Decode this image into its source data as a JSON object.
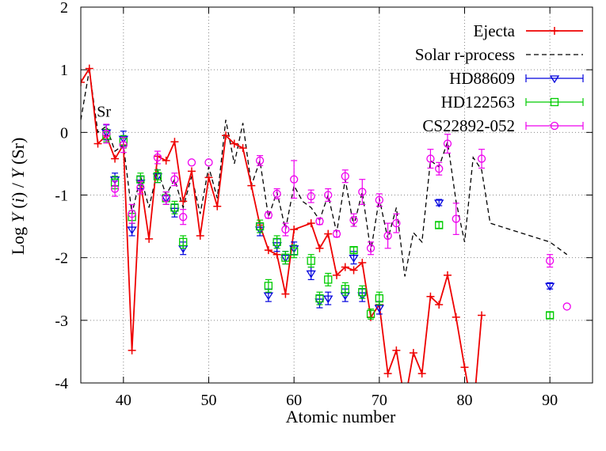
{
  "chart_data": {
    "type": "line",
    "title": "",
    "xlabel": "Atomic number",
    "ylabel_parts": [
      "Log  ",
      "Y",
      " (",
      "i",
      ") / ",
      "Y",
      " (Sr)"
    ],
    "xlim": [
      35,
      95
    ],
    "ylim": [
      -4,
      2
    ],
    "x_ticks": [
      40,
      50,
      60,
      70,
      80,
      90
    ],
    "y_ticks": [
      2,
      1,
      0,
      -1,
      -2,
      -3,
      -4
    ],
    "y_tick_labels": [
      "2",
      "1",
      "0",
      "-1",
      "-2",
      "-3",
      "-4"
    ],
    "grid": true,
    "legend_position": "top-right",
    "annotation": {
      "text": "Sr",
      "x": 38,
      "y": 0.2
    },
    "series": [
      {
        "name": "Ejecta",
        "color": "#ee0000",
        "style": "line-plus",
        "x": [
          35,
          36,
          37,
          38,
          39,
          40,
          41,
          42,
          43,
          44,
          45,
          46,
          47,
          48,
          49,
          50,
          51,
          52,
          53,
          54,
          55,
          56,
          57,
          58,
          59,
          60,
          62,
          63,
          64,
          65,
          66,
          67,
          68,
          69,
          70,
          71,
          72,
          73,
          74,
          75,
          76,
          77,
          78,
          79,
          80,
          81,
          82
        ],
        "y": [
          0.8,
          1.02,
          -0.18,
          -0.05,
          -0.42,
          -0.2,
          -3.48,
          -0.78,
          -1.7,
          -0.38,
          -0.45,
          -0.15,
          -1.1,
          -0.62,
          -1.65,
          -0.72,
          -1.18,
          -0.05,
          -0.18,
          -0.25,
          -0.85,
          -1.48,
          -1.88,
          -1.95,
          -2.58,
          -1.55,
          -1.45,
          -1.85,
          -1.62,
          -2.28,
          -2.15,
          -2.2,
          -2.08,
          -2.95,
          -2.75,
          -3.85,
          -3.48,
          -4.3,
          -3.52,
          -3.85,
          -2.62,
          -2.75,
          -2.28,
          -2.95,
          -3.75,
          -4.5,
          -2.92
        ]
      },
      {
        "name": "Solar r-process",
        "color": "#000000",
        "style": "dashed",
        "x": [
          35,
          36,
          37,
          38,
          39,
          40,
          41,
          42,
          43,
          44,
          45,
          46,
          47,
          48,
          49,
          50,
          51,
          52,
          53,
          54,
          55,
          56,
          57,
          58,
          59,
          60,
          61,
          62,
          63,
          64,
          65,
          66,
          67,
          68,
          69,
          70,
          71,
          72,
          73,
          74,
          75,
          76,
          77,
          78,
          79,
          80,
          81,
          82,
          83,
          90,
          92
        ],
        "y": [
          0.2,
          1.0,
          0.0,
          0.1,
          -0.3,
          -0.2,
          -1.3,
          -0.7,
          -1.2,
          -0.6,
          -1.0,
          -0.75,
          -1.2,
          -0.7,
          -1.3,
          -0.55,
          -1.05,
          0.2,
          -0.5,
          0.15,
          -0.85,
          -0.45,
          -1.35,
          -0.95,
          -1.55,
          -0.85,
          -1.1,
          -1.2,
          -1.4,
          -1.0,
          -1.6,
          -0.75,
          -1.5,
          -0.95,
          -1.9,
          -1.05,
          -1.7,
          -1.2,
          -2.3,
          -1.6,
          -1.75,
          -0.45,
          -0.55,
          -0.15,
          -1.1,
          -1.75,
          -0.4,
          -0.6,
          -1.45,
          -1.75,
          -1.95
        ]
      },
      {
        "name": "HD88609",
        "color": "#0000dd",
        "style": "triangle-down",
        "x": [
          38,
          39,
          40,
          41,
          42,
          44,
          45,
          46,
          47,
          56,
          57,
          58,
          59,
          60,
          62,
          63,
          64,
          66,
          67,
          68,
          70,
          77,
          90
        ],
        "y": [
          0.0,
          -0.75,
          -0.1,
          -1.55,
          -0.8,
          -0.7,
          -1.05,
          -1.25,
          -1.85,
          -1.55,
          -2.6,
          -1.8,
          -2.0,
          -1.85,
          -2.25,
          -2.7,
          -2.65,
          -2.6,
          -2.0,
          -2.6,
          -2.8,
          -1.12,
          -2.45
        ],
        "err": [
          0.12,
          0.1,
          0.12,
          0.1,
          0.1,
          0.1,
          0.1,
          0.1,
          0.1,
          0.1,
          0.1,
          0.1,
          0.1,
          0.1,
          0.1,
          0.1,
          0.1,
          0.1,
          0.1,
          0.1,
          0.1,
          0.05,
          0.05
        ]
      },
      {
        "name": "HD122563",
        "color": "#00cc00",
        "style": "square",
        "x": [
          38,
          39,
          40,
          41,
          42,
          44,
          45,
          46,
          47,
          56,
          57,
          58,
          59,
          60,
          62,
          63,
          64,
          66,
          67,
          68,
          69,
          70,
          77,
          90
        ],
        "y": [
          -0.05,
          -0.8,
          -0.15,
          -1.35,
          -0.75,
          -0.7,
          -1.05,
          -1.2,
          -1.75,
          -1.5,
          -2.45,
          -1.75,
          -2.0,
          -1.9,
          -2.05,
          -2.65,
          -2.35,
          -2.5,
          -1.88,
          -2.55,
          -2.9,
          -2.65,
          -1.48,
          -2.92
        ],
        "err": [
          0.1,
          0.1,
          0.1,
          0.1,
          0.1,
          0.1,
          0.1,
          0.1,
          0.1,
          0.1,
          0.1,
          0.1,
          0.1,
          0.1,
          0.1,
          0.1,
          0.1,
          0.1,
          0.05,
          0.1,
          0.08,
          0.1,
          0.05,
          0.05
        ]
      },
      {
        "name": "CS22892-052",
        "color": "#ee00ee",
        "style": "circle",
        "x": [
          38,
          39,
          40,
          41,
          42,
          44,
          45,
          46,
          47,
          48,
          50,
          56,
          57,
          58,
          59,
          60,
          62,
          63,
          64,
          65,
          66,
          67,
          68,
          69,
          70,
          71,
          72,
          76,
          77,
          78,
          79,
          82,
          90,
          92
        ],
        "y": [
          -0.02,
          -0.9,
          -0.2,
          -1.3,
          -0.88,
          -0.4,
          -1.05,
          -0.75,
          -1.35,
          -0.48,
          -0.48,
          -0.45,
          -1.32,
          -0.98,
          -1.55,
          -0.75,
          -1.02,
          -1.42,
          -1.0,
          -1.62,
          -0.7,
          -1.4,
          -0.95,
          -1.85,
          -1.08,
          -1.65,
          -1.45,
          -0.42,
          -0.58,
          -0.18,
          -1.38,
          -0.42,
          -2.05,
          -2.78
        ],
        "err": [
          0.15,
          0.12,
          0.12,
          0.15,
          0.1,
          0.1,
          0.1,
          0.1,
          0.12,
          0.0,
          0.0,
          0.08,
          0.05,
          0.08,
          0.1,
          0.3,
          0.1,
          0.05,
          0.1,
          0.05,
          0.1,
          0.1,
          0.2,
          0.1,
          0.1,
          0.2,
          0.15,
          0.15,
          0.1,
          0.15,
          0.25,
          0.15,
          0.1,
          0.0
        ]
      }
    ]
  }
}
